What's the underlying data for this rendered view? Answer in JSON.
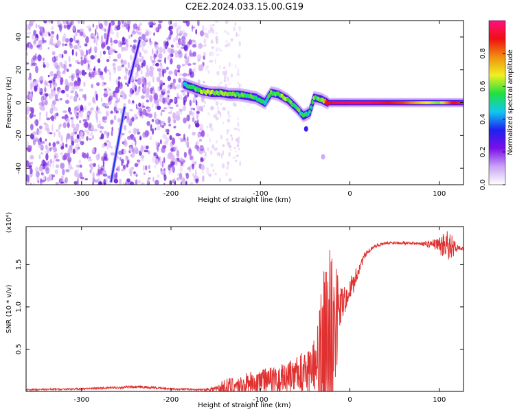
{
  "title": "C2E2.2024.033.15.00.G19",
  "colors": {
    "snr_line": "#e03030",
    "spectro_faint": "#d9b8f5",
    "spectro_mid": "#9a4fe8",
    "spectro_strong": "#6a1fd8",
    "ridge_cyan": "#10c8f0",
    "ridge_green": "#20e040",
    "ridge_red": "#f03010"
  },
  "chart_data": [
    {
      "type": "heatmap",
      "xlabel": "Height of straight line (km)",
      "ylabel": "Frequency (Hz)",
      "xlim": [
        -362,
        127
      ],
      "ylim": [
        -50,
        50
      ],
      "x_ticks": [
        -300,
        -200,
        -100,
        0,
        100
      ],
      "x_tick_labels": [
        "-300",
        "-200",
        "-100",
        "0",
        "100"
      ],
      "y_ticks": [
        -40,
        -20,
        0,
        20,
        40
      ],
      "y_tick_labels": [
        "-40",
        "-20",
        "0",
        "20",
        "40"
      ],
      "colorbar": {
        "label": "Normalized spectral amplitude",
        "range": [
          0,
          1
        ],
        "ticks": [
          0.0,
          0.2,
          0.4,
          0.6,
          0.8
        ],
        "tick_labels": [
          "0.0",
          "0.2",
          "0.4",
          "0.6",
          "0.8"
        ],
        "stops": [
          "#ffffff",
          "#c9a3f5",
          "#7a10e8",
          "#2020f0",
          "#10c8f0",
          "#20e040",
          "#f0f020",
          "#f09010",
          "#f01010",
          "#ff1080"
        ]
      },
      "ridge": [
        {
          "x": -185,
          "y": 11,
          "amp": 0.5
        },
        {
          "x": -175,
          "y": 9,
          "amp": 0.55
        },
        {
          "x": -165,
          "y": 7,
          "amp": 0.65
        },
        {
          "x": -155,
          "y": 6,
          "amp": 0.7
        },
        {
          "x": -145,
          "y": 6,
          "amp": 0.6
        },
        {
          "x": -135,
          "y": 5,
          "amp": 0.7
        },
        {
          "x": -125,
          "y": 5,
          "amp": 0.55
        },
        {
          "x": -115,
          "y": 4,
          "amp": 0.6
        },
        {
          "x": -105,
          "y": 3,
          "amp": 0.55
        },
        {
          "x": -95,
          "y": 0,
          "amp": 0.5
        },
        {
          "x": -88,
          "y": 6,
          "amp": 0.6
        },
        {
          "x": -80,
          "y": 5,
          "amp": 0.6
        },
        {
          "x": -70,
          "y": 2,
          "amp": 0.65
        },
        {
          "x": -60,
          "y": -3,
          "amp": 0.6
        },
        {
          "x": -52,
          "y": -8,
          "amp": 0.55
        },
        {
          "x": -45,
          "y": -6,
          "amp": 0.5
        },
        {
          "x": -40,
          "y": 3,
          "amp": 0.6
        },
        {
          "x": -32,
          "y": 2,
          "amp": 0.6
        },
        {
          "x": -25,
          "y": 0,
          "amp": 0.9
        },
        {
          "x": -10,
          "y": 0,
          "amp": 0.95
        },
        {
          "x": 0,
          "y": 0,
          "amp": 0.95
        },
        {
          "x": 20,
          "y": 0,
          "amp": 0.95
        },
        {
          "x": 40,
          "y": 0,
          "amp": 0.9
        },
        {
          "x": 60,
          "y": 0,
          "amp": 0.85
        },
        {
          "x": 80,
          "y": 0,
          "amp": 0.7
        },
        {
          "x": 100,
          "y": 0,
          "amp": 0.6
        },
        {
          "x": 115,
          "y": 0,
          "amp": 0.9
        },
        {
          "x": 127,
          "y": 0,
          "amp": 0.85
        }
      ],
      "noise_region_x": [
        -362,
        -163
      ],
      "sparse_region_x": [
        -163,
        -122
      ],
      "diagonal_streaks": [
        {
          "x0": -267,
          "y0": -48,
          "x1": -252,
          "y1": -3,
          "amp": 0.35
        },
        {
          "x0": -247,
          "y0": 12,
          "x1": -235,
          "y1": 38,
          "amp": 0.3
        },
        {
          "x0": -272,
          "y0": 36,
          "x1": -268,
          "y1": 48,
          "amp": 0.2
        }
      ],
      "isolated_blobs": [
        {
          "x": -49,
          "y": -16,
          "amp": 0.3
        },
        {
          "x": -30,
          "y": -33,
          "amp": 0.1
        }
      ]
    },
    {
      "type": "line",
      "xlabel": "Height of straight line (km)",
      "ylabel": "SNR (10 * v/v)",
      "y_multiplier": "(x10⁴)",
      "xlim": [
        -362,
        127
      ],
      "ylim": [
        0,
        1.95
      ],
      "x_ticks": [
        -300,
        -200,
        -100,
        0,
        100
      ],
      "x_tick_labels": [
        "-300",
        "-200",
        "-100",
        "0",
        "100"
      ],
      "y_ticks": [
        0.5,
        1.0,
        1.5
      ],
      "y_tick_labels": [
        "0.5",
        "1.0",
        "1.5"
      ],
      "envelope": {
        "x": [
          -362,
          -300,
          -250,
          -230,
          -200,
          -165,
          -150,
          -140,
          -130,
          -120,
          -110,
          -100,
          -90,
          -80,
          -70,
          -60,
          -55,
          -50,
          -45,
          -40,
          -35,
          -30,
          -27,
          -25,
          -22,
          -20,
          -18,
          -15,
          -12,
          -10,
          -5,
          0,
          5,
          10,
          15,
          20,
          25,
          30,
          40,
          50,
          60,
          80,
          100,
          105,
          110,
          115,
          120,
          127
        ],
        "base": [
          0.02,
          0.03,
          0.05,
          0.05,
          0.03,
          0.02,
          0.03,
          0.05,
          0.06,
          0.08,
          0.1,
          0.12,
          0.14,
          0.15,
          0.17,
          0.2,
          0.22,
          0.25,
          0.28,
          0.3,
          0.35,
          0.42,
          0.5,
          0.6,
          0.7,
          0.75,
          0.8,
          0.85,
          0.9,
          1.0,
          1.1,
          1.2,
          1.3,
          1.45,
          1.58,
          1.65,
          1.7,
          1.73,
          1.75,
          1.76,
          1.76,
          1.75,
          1.74,
          1.72,
          1.7,
          1.7,
          1.7,
          1.69
        ],
        "spread": [
          0.01,
          0.01,
          0.015,
          0.015,
          0.01,
          0.01,
          0.04,
          0.1,
          0.12,
          0.1,
          0.18,
          0.16,
          0.2,
          0.22,
          0.24,
          0.26,
          0.3,
          0.35,
          0.38,
          0.4,
          0.6,
          1.3,
          1.5,
          1.2,
          1.4,
          1.3,
          1.0,
          0.8,
          0.5,
          0.3,
          0.2,
          0.15,
          0.12,
          0.08,
          0.05,
          0.03,
          0.02,
          0.02,
          0.02,
          0.02,
          0.02,
          0.02,
          0.08,
          0.2,
          0.25,
          0.12,
          0.04,
          0.02
        ]
      }
    }
  ]
}
